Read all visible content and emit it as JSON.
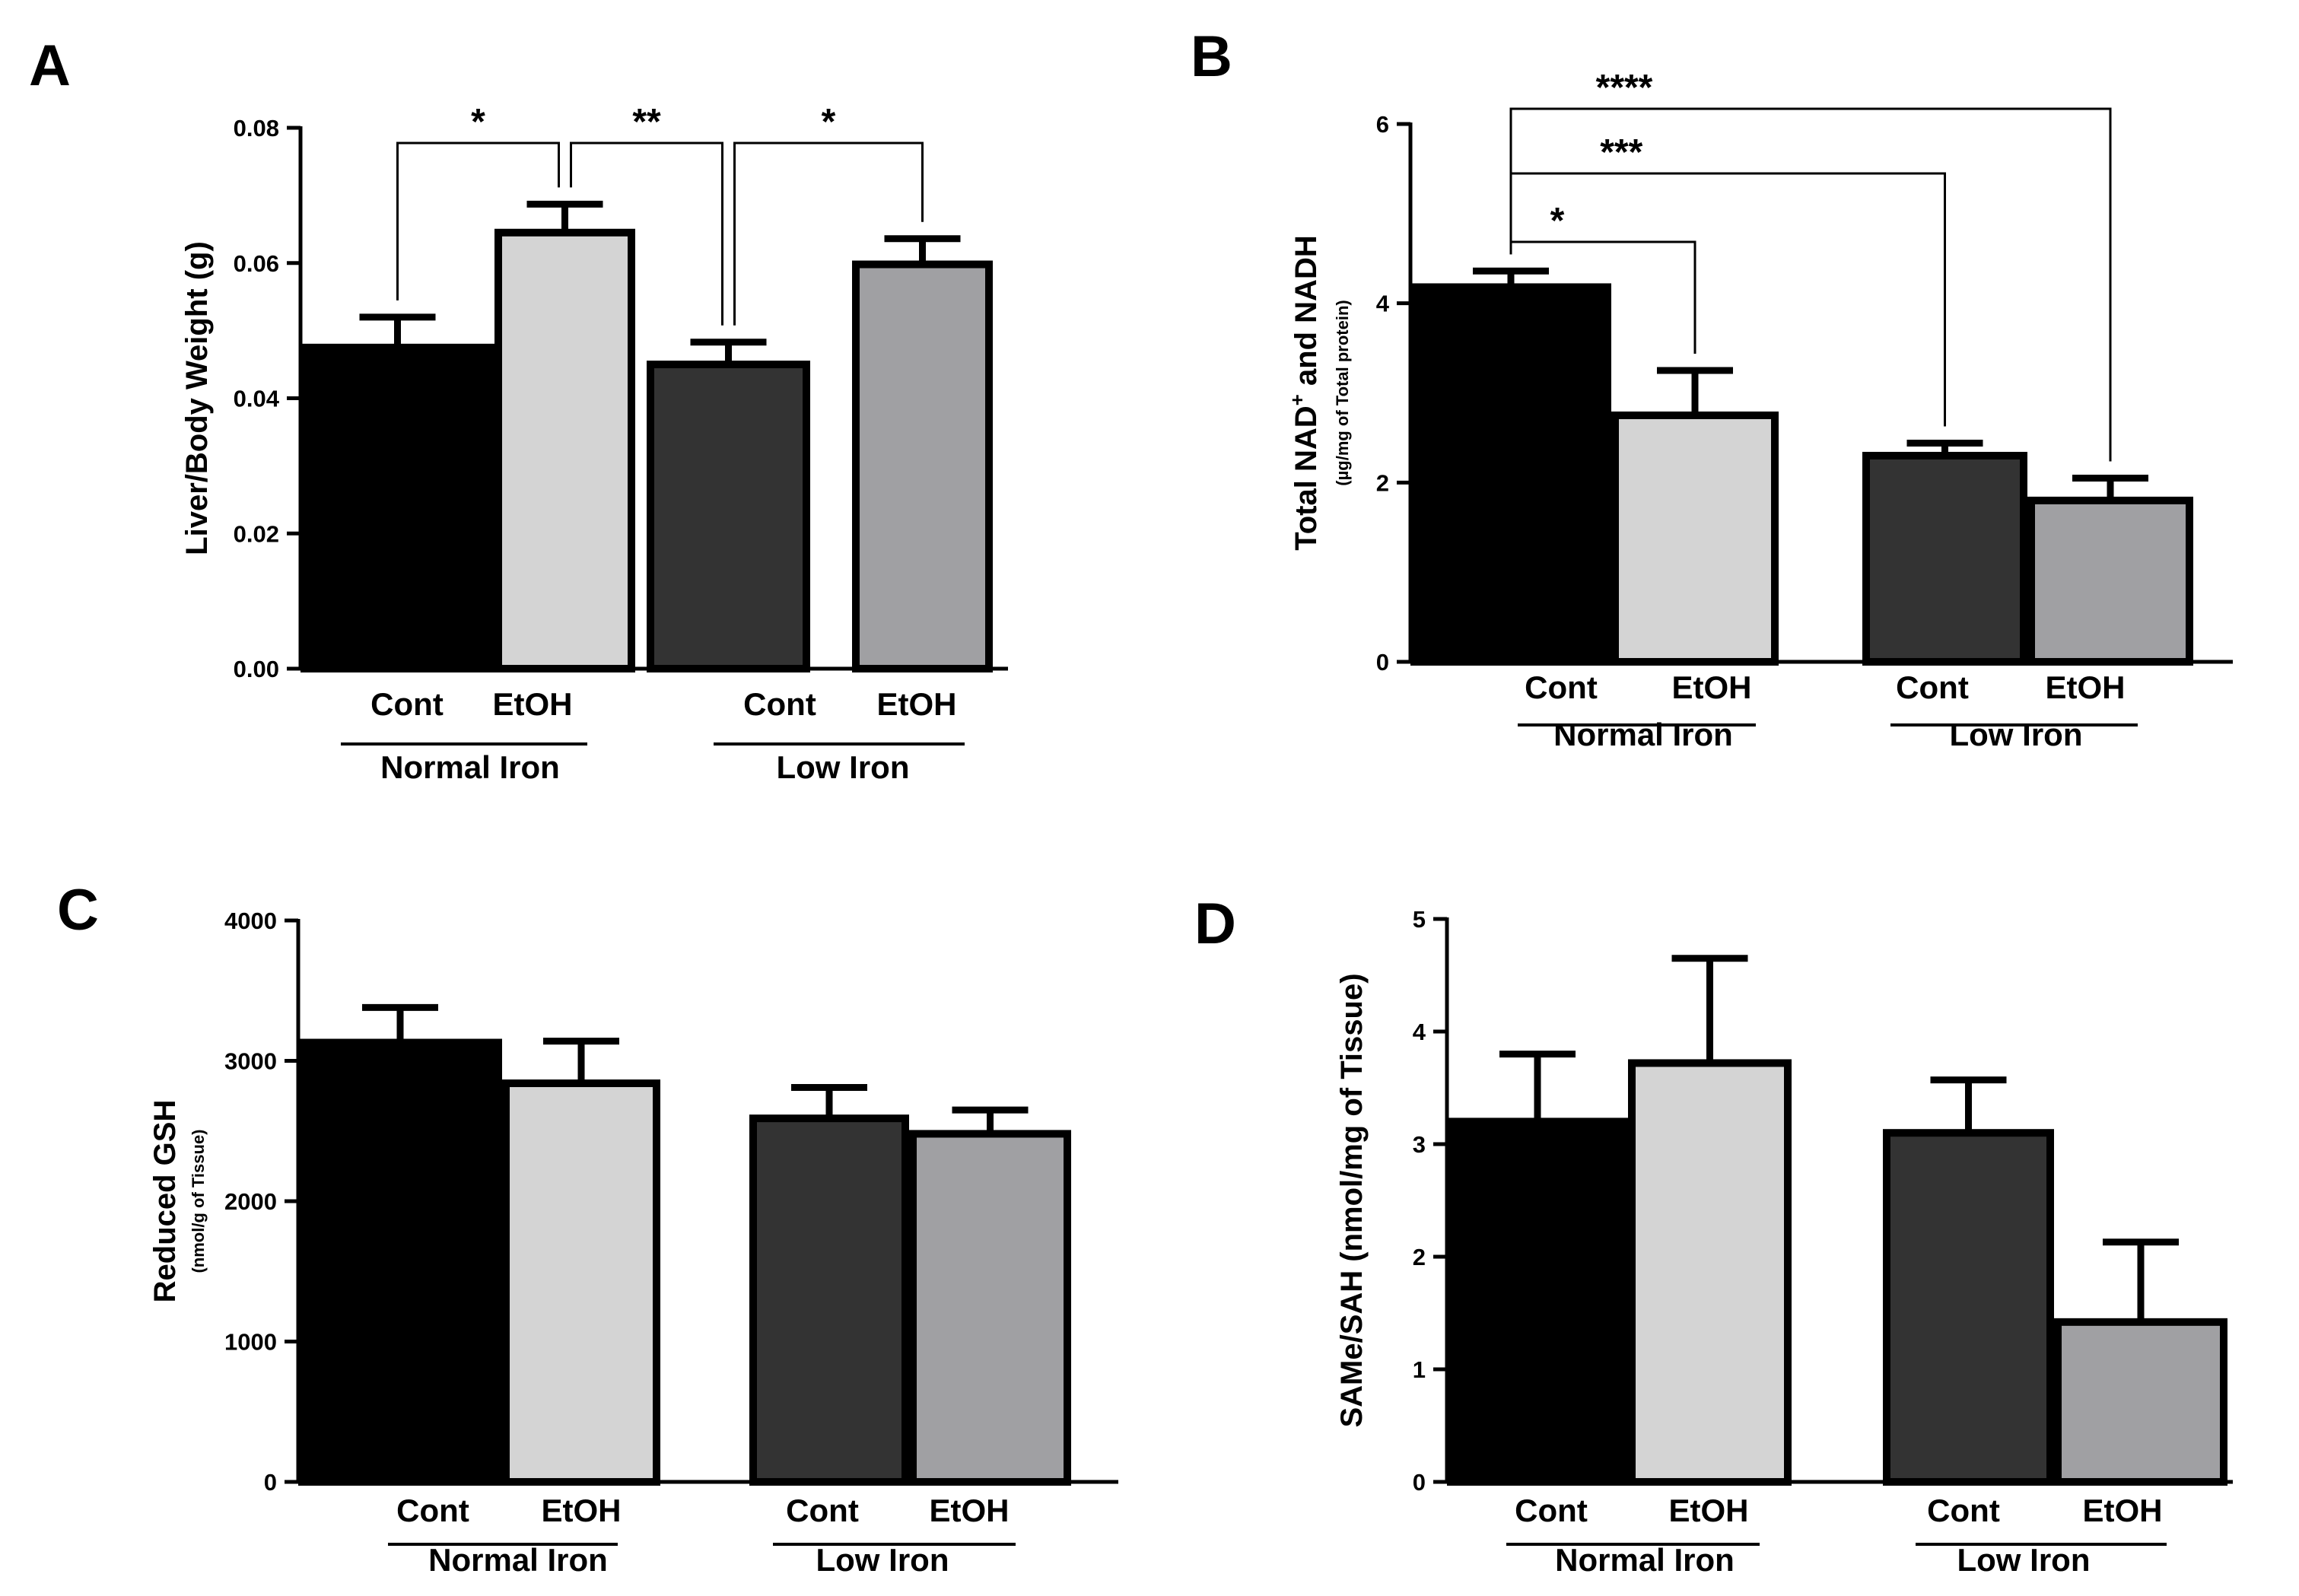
{
  "figure": {
    "panels": [
      {
        "label": "A",
        "ylabel_html": "Liver/Body Weight (g)",
        "ylabel_sub": ""
      },
      {
        "label": "B",
        "ylabel_pre": "Total NAD",
        "ylabel_sup": "+",
        "ylabel_post": " and NADH",
        "ylabel_sub": "(µg/mg of Total protein)"
      },
      {
        "label": "C",
        "ylabel_html": "Reduced GSH",
        "ylabel_sub": "(nmol/g of Tissue)"
      },
      {
        "label": "D",
        "ylabel_html": "SAMe/SAH (nmol/mg of Tissue)",
        "ylabel_sub": ""
      }
    ]
  },
  "chart_data": [
    {
      "type": "bar",
      "panel": "A",
      "ylabel": "Liver/Body Weight (g)",
      "ylim": [
        0,
        0.08
      ],
      "yticks": [
        "0.00",
        "0.02",
        "0.04",
        "0.06",
        "0.08"
      ],
      "ytick_values": [
        0,
        0.02,
        0.04,
        0.06,
        0.08
      ],
      "categories": [
        "Cont",
        "EtOH",
        "Cont",
        "EtOH"
      ],
      "groups": [
        "Normal Iron",
        "Low Iron"
      ],
      "values": [
        0.0475,
        0.0645,
        0.045,
        0.0598
      ],
      "errors": [
        0.0045,
        0.0042,
        0.0033,
        0.0038
      ],
      "colors": [
        "#000000",
        "#d4d4d4",
        "#333333",
        "#a0a0a3"
      ],
      "significance": [
        {
          "from": 0,
          "to": 1,
          "label": "*"
        },
        {
          "from": 1,
          "to": 2,
          "label": "**"
        },
        {
          "from": 2,
          "to": 3,
          "label": "*"
        }
      ]
    },
    {
      "type": "bar",
      "panel": "B",
      "ylabel": "Total NAD+ and NADH (µg/mg of Total protein)",
      "ylim": [
        0,
        6
      ],
      "yticks": [
        "0",
        "2",
        "4",
        "6"
      ],
      "ytick_values": [
        0,
        2,
        4,
        6
      ],
      "categories": [
        "Cont",
        "EtOH",
        "Cont",
        "EtOH"
      ],
      "groups": [
        "Normal Iron",
        "Low Iron"
      ],
      "values": [
        4.18,
        2.75,
        2.3,
        1.8
      ],
      "errors": [
        0.18,
        0.5,
        0.14,
        0.25
      ],
      "colors": [
        "#000000",
        "#d4d4d4",
        "#333333",
        "#a0a0a3"
      ],
      "significance": [
        {
          "from": 0,
          "to": 1,
          "label": "*"
        },
        {
          "from": 0,
          "to": 2,
          "label": "***"
        },
        {
          "from": 0,
          "to": 3,
          "label": "****"
        }
      ]
    },
    {
      "type": "bar",
      "panel": "C",
      "ylabel": "Reduced GSH (nmol/g of Tissue)",
      "ylim": [
        0,
        4000
      ],
      "yticks": [
        "0",
        "1000",
        "2000",
        "3000",
        "4000"
      ],
      "ytick_values": [
        0,
        1000,
        2000,
        3000,
        4000
      ],
      "categories": [
        "Cont",
        "EtOH",
        "Cont",
        "EtOH"
      ],
      "groups": [
        "Normal Iron",
        "Low Iron"
      ],
      "values": [
        3130,
        2840,
        2590,
        2480
      ],
      "errors": [
        250,
        300,
        220,
        170
      ],
      "colors": [
        "#000000",
        "#d4d4d4",
        "#333333",
        "#a0a0a3"
      ],
      "significance": []
    },
    {
      "type": "bar",
      "panel": "D",
      "ylabel": "SAMe/SAH (nmol/mg of Tissue)",
      "ylim": [
        0,
        5
      ],
      "yticks": [
        "0",
        "1",
        "2",
        "3",
        "4",
        "5"
      ],
      "ytick_values": [
        0,
        1,
        2,
        3,
        4,
        5
      ],
      "categories": [
        "Cont",
        "EtOH",
        "Cont",
        "EtOH"
      ],
      "groups": [
        "Normal Iron",
        "Low Iron"
      ],
      "values": [
        3.2,
        3.72,
        3.1,
        1.42
      ],
      "errors": [
        0.6,
        0.93,
        0.47,
        0.71
      ],
      "colors": [
        "#000000",
        "#d4d4d4",
        "#333333",
        "#a0a0a3"
      ],
      "significance": []
    }
  ]
}
